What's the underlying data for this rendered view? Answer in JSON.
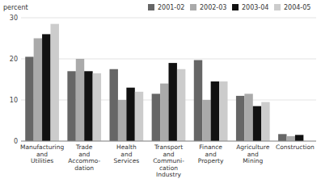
{
  "chart_data": {
    "type": "bar",
    "ylabel": "percent",
    "categories": [
      "Manufacturing\nand\nUtilities",
      "Trade\nand\nAccommo-\ndation",
      "Health\nand\nServices",
      "Transport\nand\nCommuni-\ncation\nIndustry",
      "Finance\nand\nProperty",
      "Agriculture\nand\nMining",
      "Construction"
    ],
    "series": [
      {
        "name": "2001-02",
        "color": "#666666",
        "values": [
          20.5,
          17.0,
          17.5,
          11.5,
          19.7,
          11.0,
          1.7
        ]
      },
      {
        "name": "2002-03",
        "color": "#aaaaaa",
        "values": [
          25.0,
          20.0,
          10.0,
          14.0,
          10.0,
          11.5,
          1.2
        ]
      },
      {
        "name": "2003-04",
        "color": "#111111",
        "values": [
          26.0,
          17.0,
          13.0,
          19.0,
          14.5,
          8.5,
          1.5
        ]
      },
      {
        "name": "2004-05",
        "color": "#cccccc",
        "values": [
          28.5,
          16.5,
          12.0,
          17.5,
          14.5,
          9.5,
          0.0
        ]
      }
    ],
    "ylim": [
      0,
      30
    ],
    "yticks": [
      0,
      10,
      20,
      30
    ],
    "grid": true,
    "legend": "upper right"
  }
}
